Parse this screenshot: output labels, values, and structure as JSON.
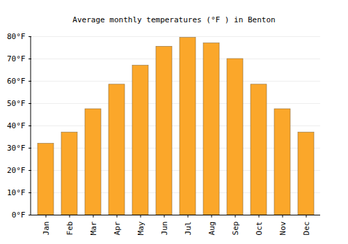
{
  "chart_data": {
    "type": "bar",
    "title": "Average monthly temperatures (°F ) in Benton",
    "categories": [
      "Jan",
      "Feb",
      "Mar",
      "Apr",
      "May",
      "Jun",
      "Jul",
      "Aug",
      "Sep",
      "Oct",
      "Nov",
      "Dec"
    ],
    "values": [
      32,
      37,
      47.5,
      58.5,
      67,
      75.5,
      79.5,
      77,
      70,
      58.5,
      47.5,
      37
    ],
    "color": "#fba72a",
    "ylim": [
      0,
      80
    ],
    "yticks": [
      {
        "value": 0,
        "label": "0°F"
      },
      {
        "value": 10,
        "label": "10°F"
      },
      {
        "value": 20,
        "label": "20°F"
      },
      {
        "value": 30,
        "label": "30°F"
      },
      {
        "value": 40,
        "label": "40°F"
      },
      {
        "value": 50,
        "label": "50°F"
      },
      {
        "value": 60,
        "label": "60°F"
      },
      {
        "value": 70,
        "label": "70°F"
      },
      {
        "value": 80,
        "label": "80°F"
      }
    ],
    "grid": true
  }
}
